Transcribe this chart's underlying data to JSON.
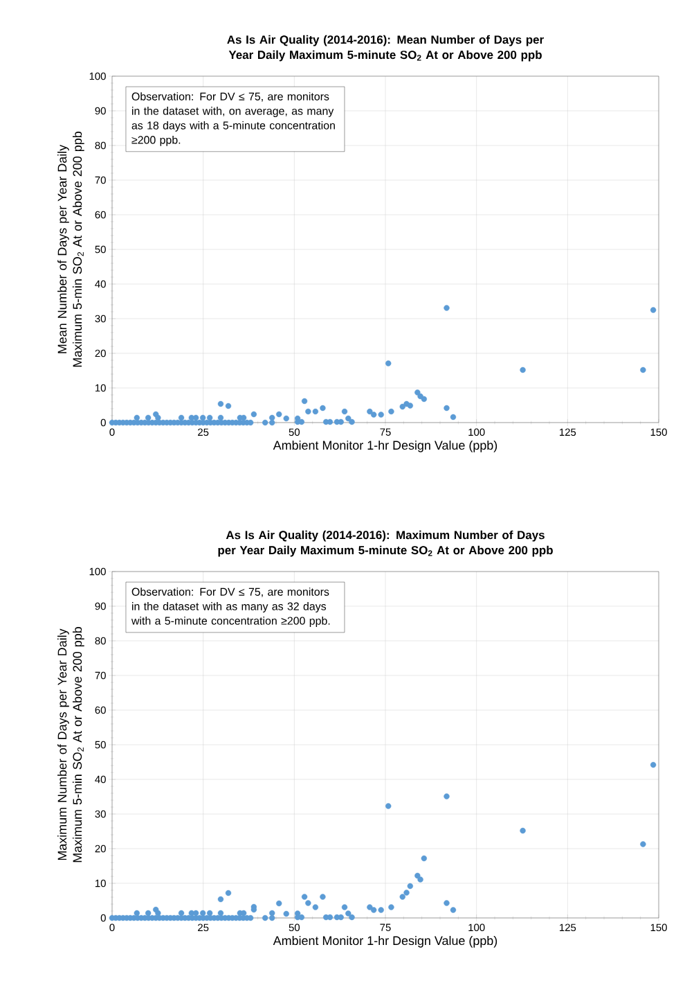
{
  "chart_data": [
    {
      "type": "scatter",
      "title": "As Is Air Quality (2014-2016): Mean Number of Days per Year Daily Maximum 5-minute SO$_{2}$ At or Above 200 ppb",
      "xlabel": "Ambient Monitor 1-hr Design Value (ppb)",
      "ylabel": "Mean Number of Days per Year Daily Maximum 5-min SO$_{2}$ At or Above 200 ppb",
      "annotations": [
        "Observation: For DV ≤ 75, are monitors in the dataset with, on average, as many as 18 days with a 5-minute concentration ≥200 ppb."
      ],
      "x": [
        0,
        1,
        2,
        3,
        4,
        5,
        6,
        7,
        8,
        9,
        10,
        11,
        12,
        13,
        14,
        15,
        16,
        17,
        18,
        19,
        20,
        21,
        22,
        23,
        24,
        25,
        26,
        27,
        28,
        29,
        30,
        31,
        32,
        33,
        34,
        35,
        36,
        37,
        38,
        6.8,
        9.9,
        12,
        12.6,
        19,
        21.8,
        23,
        24.9,
        26.8,
        29.8,
        29.8,
        31.9,
        35.1,
        36.1,
        38.9,
        42,
        43.9,
        43.9,
        45.8,
        47.8,
        50.9,
        50.9,
        52,
        52.8,
        53.8,
        55.8,
        57.8,
        58.7,
        59.8,
        61.7,
        62.8,
        63.8,
        64.8,
        65.8,
        70.7,
        71.8,
        73.8,
        75.8,
        76.6,
        79.7,
        80.8,
        81.8,
        83.8,
        84.6,
        85.6,
        91.8,
        91.8,
        93.6,
        112.7,
        145.7,
        148.5
      ],
      "values": [
        0,
        0,
        0,
        0,
        0,
        0,
        0,
        0,
        0,
        0,
        0,
        0,
        0,
        0,
        0,
        0,
        0,
        0,
        0,
        0,
        0,
        0,
        0,
        0,
        0,
        0,
        0,
        0,
        0,
        0,
        0,
        0,
        0,
        0,
        0,
        0,
        0,
        0,
        0,
        1.4,
        1.4,
        2.4,
        1.4,
        1.4,
        1.4,
        1.4,
        1.4,
        1.4,
        5.4,
        1.4,
        4.8,
        1.4,
        1.4,
        2.4,
        0,
        1.4,
        0,
        2.4,
        1.2,
        1.2,
        0.2,
        0.2,
        6.2,
        3.2,
        3.2,
        4.2,
        0.2,
        0.2,
        0.2,
        0.2,
        3.2,
        1.2,
        0.2,
        3.2,
        2.3,
        2.3,
        17.1,
        3.2,
        4.6,
        5.4,
        4.9,
        8.7,
        7.6,
        6.8,
        33.1,
        4.2,
        1.6,
        15.2,
        15.2,
        32.5
      ],
      "color": "#5b9bd5",
      "marker": "circle",
      "grid": true,
      "xlim": [
        0,
        150
      ],
      "ylim": [
        0,
        100
      ],
      "xticks": [
        0,
        25,
        50,
        75,
        100,
        125,
        150
      ],
      "yticks": [
        0,
        10,
        20,
        30,
        40,
        50,
        60,
        70,
        80,
        90,
        100
      ]
    },
    {
      "type": "scatter",
      "title": "As Is Air Quality (2014-2016): Maximum Number of Days per Year Daily Maximum 5-minute SO$_{2}$ At or Above 200 ppb",
      "xlabel": "Ambient Monitor 1-hr Design Value (ppb)",
      "ylabel": "Maximum Number of Days per Year Daily Maximum 5-min SO$_{2}$ At or Above 200 ppb",
      "annotations": [
        "Observation: For DV ≤ 75, are monitors in the dataset with as many as 32 days with a 5-minute concentration ≥200 ppb."
      ],
      "x": [
        0,
        1,
        2,
        3,
        4,
        5,
        6,
        7,
        8,
        9,
        10,
        11,
        12,
        13,
        14,
        15,
        16,
        17,
        18,
        19,
        20,
        21,
        22,
        23,
        24,
        25,
        26,
        27,
        28,
        29,
        30,
        31,
        32,
        33,
        34,
        35,
        36,
        37,
        38,
        6.8,
        9.9,
        12,
        12.6,
        19,
        21.8,
        23,
        24.9,
        26.8,
        29.8,
        29.8,
        31.9,
        35.1,
        36.1,
        38.9,
        42,
        43.9,
        43.9,
        45.8,
        47.8,
        50.9,
        50.9,
        52,
        52.8,
        53.8,
        55.8,
        57.8,
        58.7,
        59.8,
        61.7,
        62.8,
        63.8,
        64.8,
        65.8,
        70.7,
        71.8,
        73.8,
        75.8,
        76.6,
        79.7,
        80.8,
        81.8,
        83.8,
        84.6,
        85.6,
        91.8,
        91.8,
        93.6,
        112.7,
        145.7,
        148.5,
        38.9
      ],
      "values": [
        0,
        0,
        0,
        0,
        0,
        0,
        0,
        0,
        0,
        0,
        0,
        0,
        0,
        0,
        0,
        0,
        0,
        0,
        0,
        0,
        0,
        0,
        0,
        0,
        0,
        0,
        0,
        0,
        0,
        0,
        0,
        0,
        0,
        0,
        0,
        0,
        0,
        0,
        0,
        1.4,
        1.4,
        2.4,
        1.4,
        1.4,
        1.4,
        1.4,
        1.4,
        1.4,
        5.4,
        1.4,
        7.2,
        1.4,
        1.4,
        3.2,
        0,
        1.4,
        0,
        4.2,
        1.2,
        1.3,
        0.2,
        0.2,
        6.1,
        4.3,
        3.1,
        6.1,
        0.2,
        0.2,
        0.2,
        0.2,
        3.1,
        1.3,
        0.2,
        3.1,
        2.3,
        2.3,
        32.3,
        3.1,
        6.1,
        7.3,
        9.2,
        12.2,
        11.1,
        17.2,
        35.1,
        4.3,
        2.3,
        25.2,
        21.3,
        44.2,
        2.4
      ],
      "color": "#5b9bd5",
      "marker": "circle",
      "grid": true,
      "xlim": [
        0,
        150
      ],
      "ylim": [
        0,
        100
      ],
      "xticks": [
        0,
        25,
        50,
        75,
        100,
        125,
        150
      ],
      "yticks": [
        0,
        10,
        20,
        30,
        40,
        50,
        60,
        70,
        80,
        90,
        100
      ]
    }
  ]
}
